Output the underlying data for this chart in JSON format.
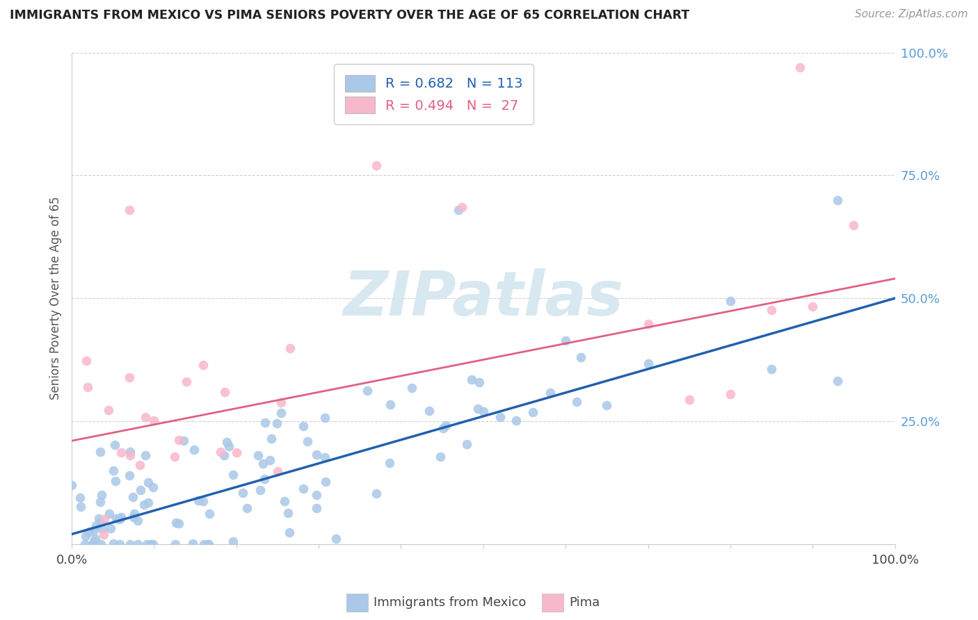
{
  "title": "IMMIGRANTS FROM MEXICO VS PIMA SENIORS POVERTY OVER THE AGE OF 65 CORRELATION CHART",
  "source": "Source: ZipAtlas.com",
  "ylabel": "Seniors Poverty Over the Age of 65",
  "series1_label": "Immigrants from Mexico",
  "series1_scatter_color": "#aac8e8",
  "series1_line_color": "#2060b0",
  "series1_R": 0.682,
  "series1_N": 113,
  "series2_label": "Pima",
  "series2_scatter_color": "#f8b8cc",
  "series2_line_color": "#e06080",
  "series2_R": 0.494,
  "series2_N": 27,
  "background_color": "#ffffff",
  "grid_color": "#d0d0d0",
  "title_color": "#222222",
  "source_color": "#999999",
  "yticklabel_color": "#5b9bd5",
  "xticklabel_color": "#444444",
  "watermark_color": "#d8e8f0",
  "xlim": [
    0.0,
    1.0
  ],
  "ylim": [
    0.0,
    1.0
  ],
  "yticks": [
    0.0,
    0.25,
    0.5,
    0.75,
    1.0
  ],
  "blue_line_x0": 0.0,
  "blue_line_y0": 0.02,
  "blue_line_x1": 1.0,
  "blue_line_y1": 0.5,
  "pink_line_x0": 0.0,
  "pink_line_y0": 0.21,
  "pink_line_x1": 1.0,
  "pink_line_y1": 0.54
}
